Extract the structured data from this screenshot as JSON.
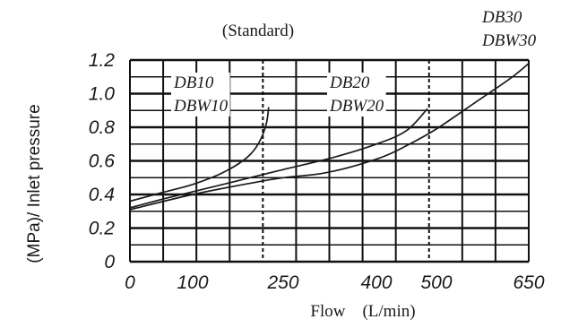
{
  "chart_data": {
    "type": "line",
    "title": "(Standard)",
    "xlabel": "Flow　(L/min)",
    "ylabel": "(MPa)/ Inlet pressure",
    "x_ticks": [
      "0",
      "100",
      "250",
      "400",
      "500",
      "650"
    ],
    "y_ticks": [
      "0",
      "0.2",
      "0.4",
      "0.6",
      "0.8",
      "1.0",
      "1.2"
    ],
    "ylim": [
      0,
      1.2
    ],
    "grid": true,
    "series": [
      {
        "name": "DB10 DBW10",
        "name_lines": [
          "DB10",
          "DBW10"
        ],
        "points": [
          [
            0,
            0.36
          ],
          [
            50,
            0.41
          ],
          [
            100,
            0.46
          ],
          [
            150,
            0.53
          ],
          [
            190,
            0.62
          ],
          [
            210,
            0.71
          ],
          [
            222,
            0.82
          ],
          [
            226,
            0.92
          ]
        ]
      },
      {
        "name": "DB20 DBW20",
        "name_lines": [
          "DB20",
          "DBW20"
        ],
        "points": [
          [
            0,
            0.32
          ],
          [
            60,
            0.38
          ],
          [
            150,
            0.46
          ],
          [
            240,
            0.54
          ],
          [
            330,
            0.62
          ],
          [
            400,
            0.7
          ],
          [
            450,
            0.78
          ],
          [
            485,
            0.91
          ]
        ]
      },
      {
        "name": "DB30 DBW30",
        "name_lines": [
          "DB30",
          "DBW30"
        ],
        "points": [
          [
            0,
            0.31
          ],
          [
            100,
            0.4
          ],
          [
            200,
            0.47
          ],
          [
            250,
            0.5
          ],
          [
            320,
            0.53
          ],
          [
            400,
            0.61
          ],
          [
            450,
            0.69
          ],
          [
            500,
            0.79
          ],
          [
            560,
            0.94
          ],
          [
            620,
            1.09
          ],
          [
            650,
            1.18
          ]
        ]
      }
    ]
  }
}
